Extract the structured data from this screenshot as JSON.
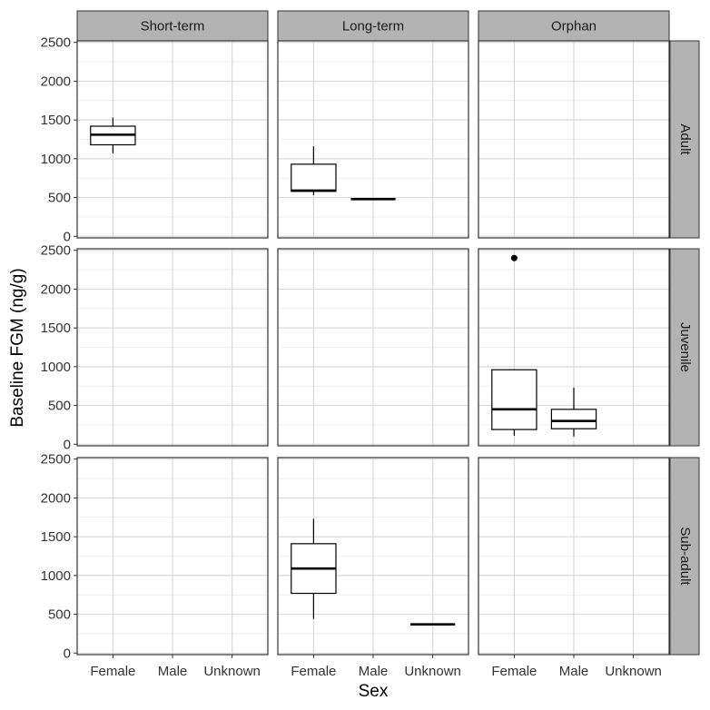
{
  "chart_data": {
    "type": "boxplot",
    "x_label": "Sex",
    "y_label": "Baseline FGM (ng/g)",
    "categories": [
      "Female",
      "Male",
      "Unknown"
    ],
    "ylim": [
      -20,
      2520
    ],
    "yticks": [
      0,
      500,
      1000,
      1500,
      2000,
      2500
    ],
    "minor_yticks": [
      250,
      750,
      1250,
      1750,
      2250
    ],
    "grid": true,
    "color": "#000000",
    "outlier_color": "#000000",
    "strip_color": "#b3b3b3",
    "facet_cols": [
      "Short-term",
      "Long-term",
      "Orphan"
    ],
    "facet_rows": [
      {
        "name": "Adult",
        "panels": [
          {
            "min": [
              1070,
              null,
              null
            ],
            "q1": [
              1180,
              null,
              null
            ],
            "median": [
              1310,
              null,
              null
            ],
            "q3": [
              1420,
              null,
              null
            ],
            "max": [
              1530,
              null,
              null
            ],
            "outliers": [
              [],
              [],
              []
            ]
          },
          {
            "min": [
              530,
              480,
              null
            ],
            "q1": [
              580,
              480,
              null
            ],
            "median": [
              590,
              480,
              null
            ],
            "q3": [
              930,
              480,
              null
            ],
            "max": [
              1160,
              480,
              null
            ],
            "outliers": [
              [],
              [],
              []
            ]
          },
          {
            "min": [
              null,
              null,
              null
            ],
            "q1": [
              null,
              null,
              null
            ],
            "median": [
              null,
              null,
              null
            ],
            "q3": [
              null,
              null,
              null
            ],
            "max": [
              null,
              null,
              null
            ],
            "outliers": [
              [],
              [],
              []
            ]
          }
        ]
      },
      {
        "name": "Juvenile",
        "panels": [
          {
            "min": [
              null,
              null,
              null
            ],
            "q1": [
              null,
              null,
              null
            ],
            "median": [
              null,
              null,
              null
            ],
            "q3": [
              null,
              null,
              null
            ],
            "max": [
              null,
              null,
              null
            ],
            "outliers": [
              [],
              [],
              []
            ]
          },
          {
            "min": [
              null,
              null,
              null
            ],
            "q1": [
              null,
              null,
              null
            ],
            "median": [
              null,
              null,
              null
            ],
            "q3": [
              null,
              null,
              null
            ],
            "max": [
              null,
              null,
              null
            ],
            "outliers": [
              [],
              [],
              []
            ]
          },
          {
            "min": [
              110,
              100,
              null
            ],
            "q1": [
              190,
              200,
              null
            ],
            "median": [
              450,
              300,
              null
            ],
            "q3": [
              960,
              450,
              null
            ],
            "max": [
              960,
              730,
              null
            ],
            "outliers": [
              [
                2400
              ],
              [],
              []
            ]
          }
        ]
      },
      {
        "name": "Sub-adult",
        "panels": [
          {
            "min": [
              null,
              null,
              null
            ],
            "q1": [
              null,
              null,
              null
            ],
            "median": [
              null,
              null,
              null
            ],
            "q3": [
              null,
              null,
              null
            ],
            "max": [
              null,
              null,
              null
            ],
            "outliers": [
              [],
              [],
              []
            ]
          },
          {
            "min": [
              440,
              null,
              370
            ],
            "q1": [
              770,
              null,
              370
            ],
            "median": [
              1090,
              null,
              370
            ],
            "q3": [
              1410,
              null,
              370
            ],
            "max": [
              1730,
              null,
              370
            ],
            "outliers": [
              [],
              [],
              []
            ]
          },
          {
            "min": [
              null,
              null,
              null
            ],
            "q1": [
              null,
              null,
              null
            ],
            "median": [
              null,
              null,
              null
            ],
            "q3": [
              null,
              null,
              null
            ],
            "max": [
              null,
              null,
              null
            ],
            "outliers": [
              [],
              [],
              []
            ]
          }
        ]
      }
    ]
  }
}
